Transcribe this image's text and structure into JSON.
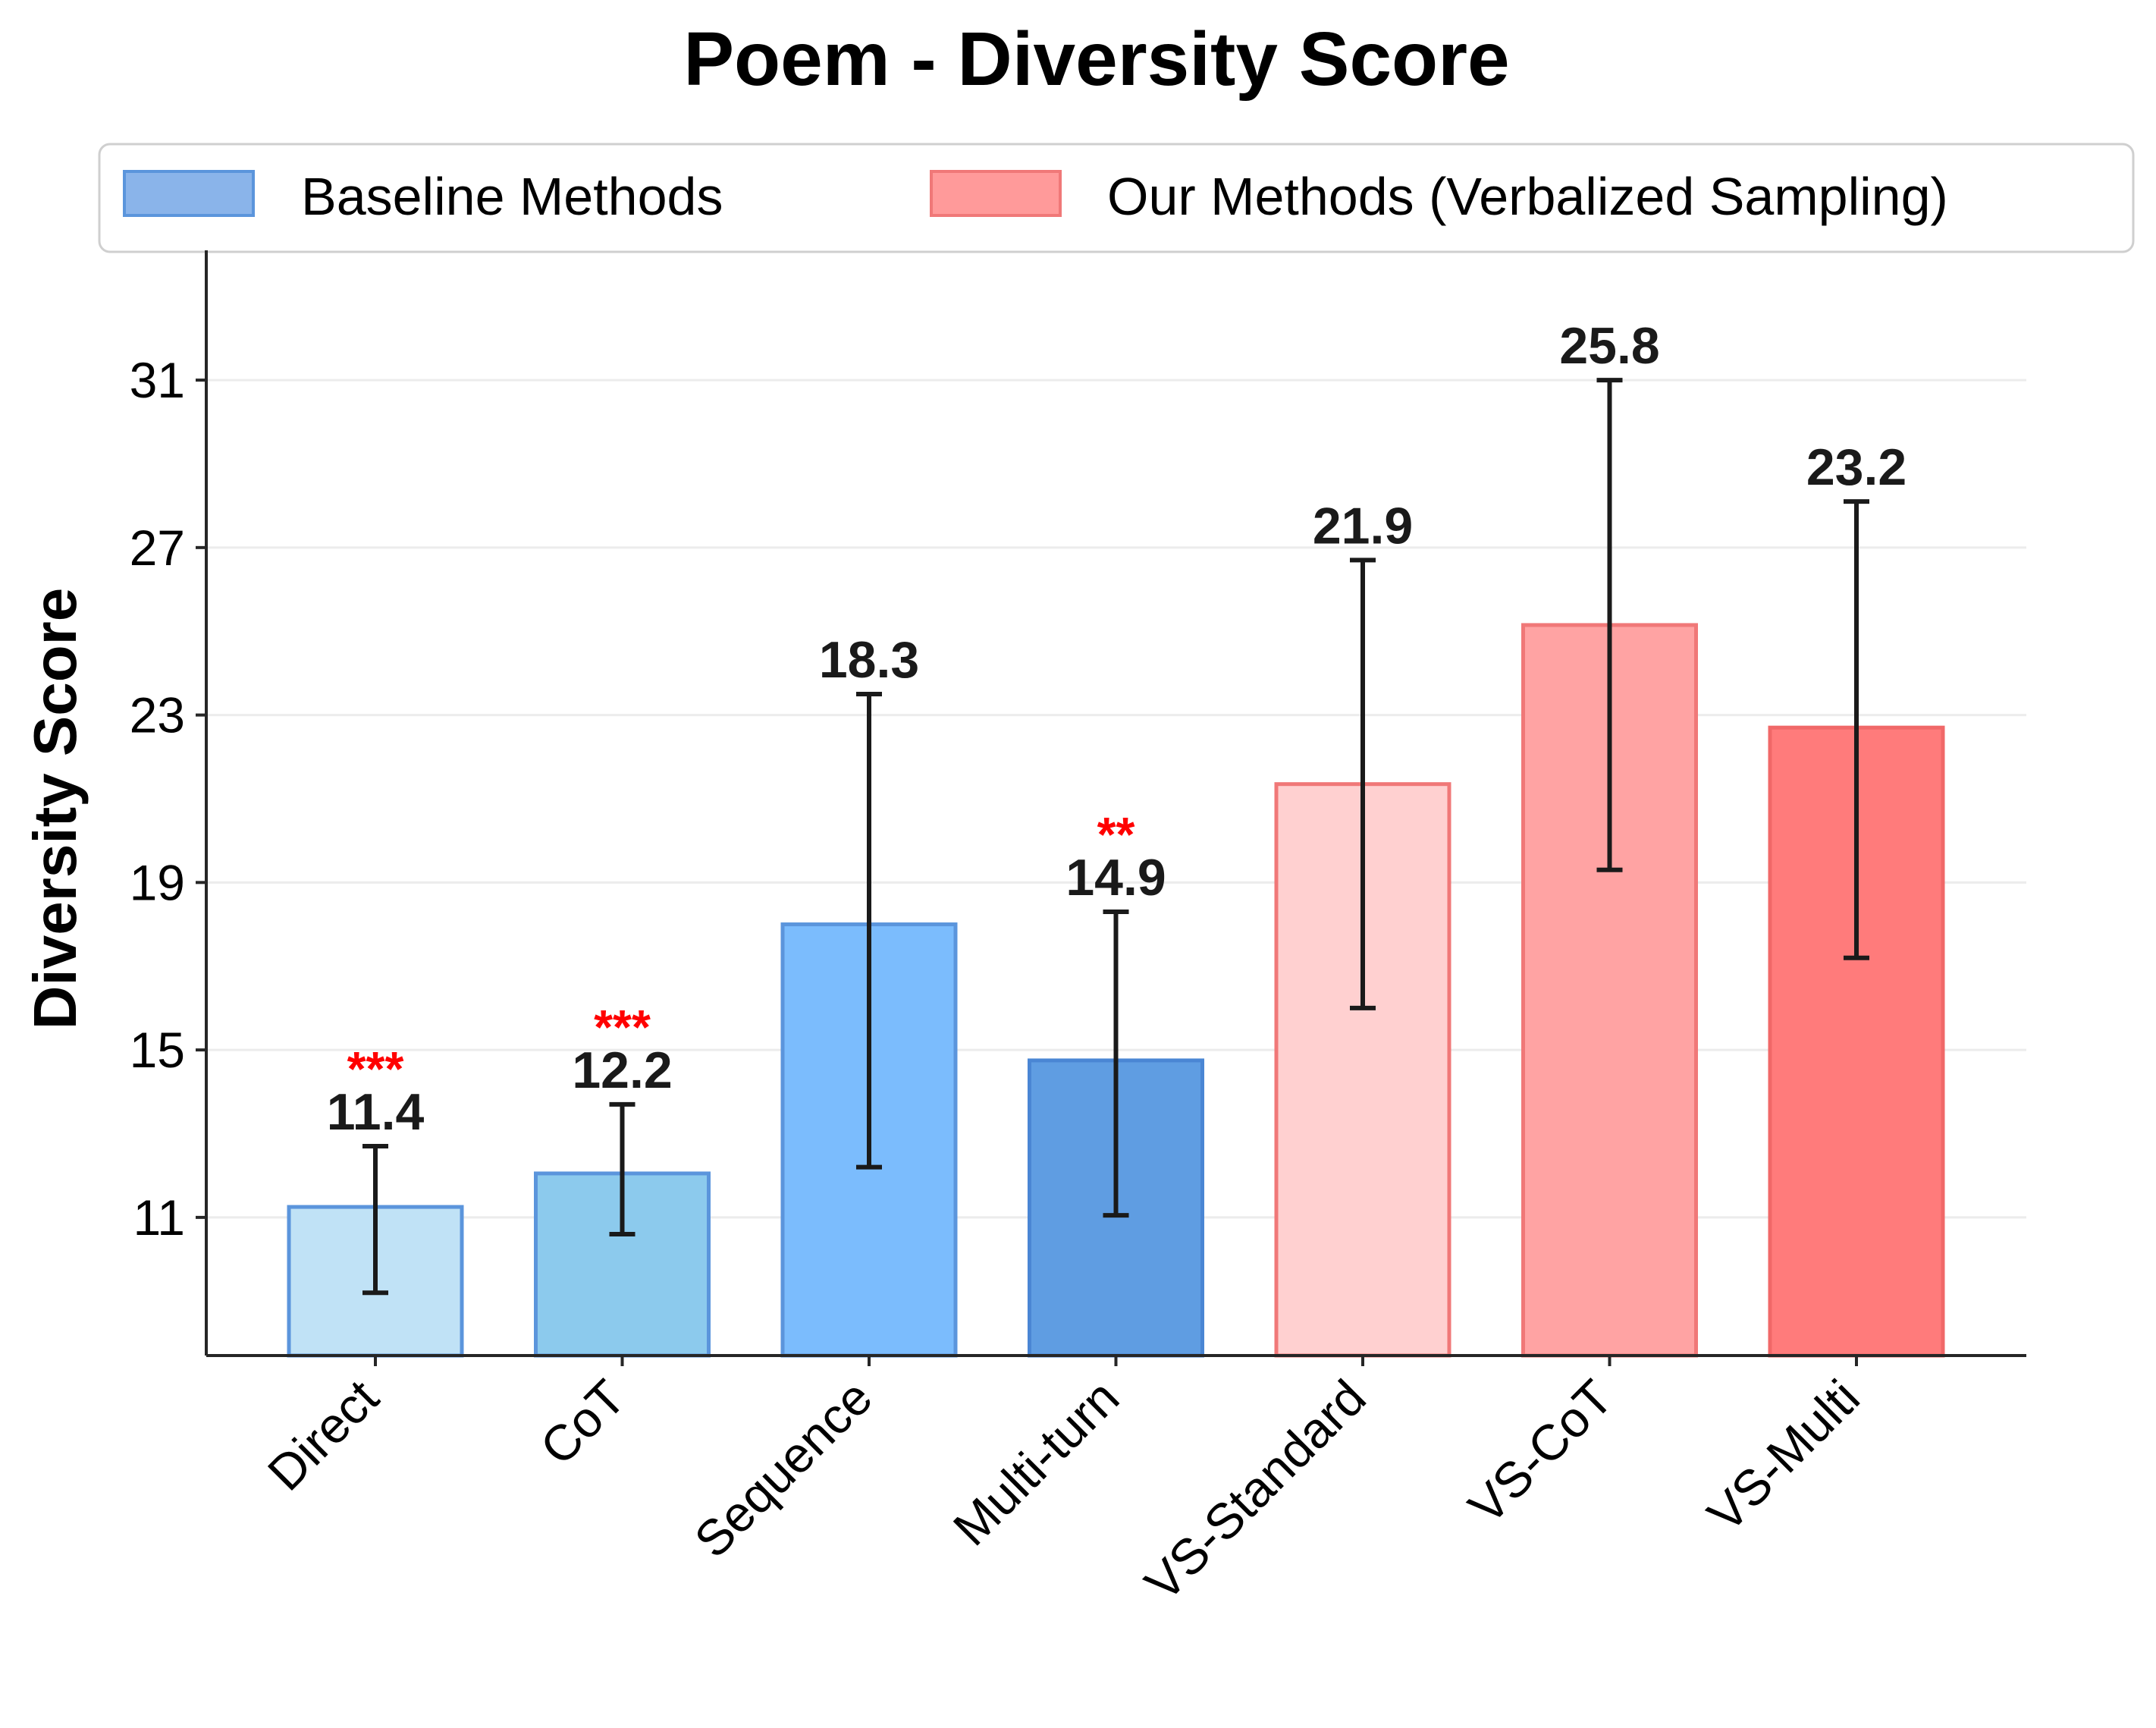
{
  "chart_data": {
    "type": "bar",
    "title": "Poem - Diversity Score",
    "ylabel": "Diversity Score",
    "xlabel": "",
    "ylim": [
      7.7,
      34.1
    ],
    "yticks": [
      11,
      15,
      19,
      23,
      27,
      31
    ],
    "grid": "horizontal",
    "legend": {
      "placement": "top",
      "entries": [
        {
          "label": "Baseline Methods",
          "color": "#8ab4ea",
          "edge": "#5b95dc"
        },
        {
          "label": "Our Methods (Verbalized Sampling)",
          "color": "#ff9a9a",
          "edge": "#f07878"
        }
      ]
    },
    "categories": [
      "Direct",
      "CoT",
      "Sequence",
      "Multi-turn",
      "VS-Standard",
      "VS-CoT",
      "VS-Multi"
    ],
    "values": [
      11.4,
      12.2,
      18.3,
      14.9,
      21.9,
      25.8,
      23.2
    ],
    "bar_heights": [
      11.25,
      12.05,
      18.0,
      14.75,
      21.35,
      25.15,
      22.7
    ],
    "error_low": [
      9.2,
      10.6,
      12.2,
      11.05,
      16.0,
      19.3,
      17.2
    ],
    "error_high": [
      12.7,
      13.7,
      23.5,
      18.3,
      26.7,
      31.0,
      28.1
    ],
    "significance": [
      "***",
      "***",
      "",
      "**",
      "",
      "",
      ""
    ],
    "colors": [
      "#c0e2f6",
      "#8ccaed",
      "#7bbcfd",
      "#5f9de2",
      "#ffd0d0",
      "#ffa3a3",
      "#ff7b7b"
    ],
    "edge_colors": [
      "#5b95dc",
      "#5b95dc",
      "#5b95dc",
      "#4a86d4",
      "#f07878",
      "#f07878",
      "#f06868"
    ]
  }
}
